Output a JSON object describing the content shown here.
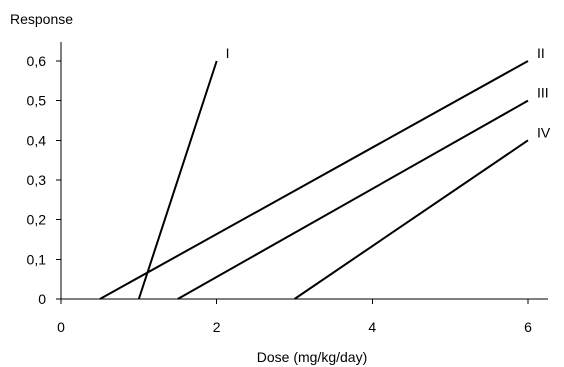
{
  "chart_data": {
    "type": "line",
    "title": "",
    "ylabel": "Response",
    "xlabel": "Dose (mg/kg/day)",
    "xlim": [
      0,
      6
    ],
    "ylim": [
      0,
      0.6
    ],
    "x_ticks": [
      0,
      2,
      4,
      6
    ],
    "x_tick_labels": [
      "0",
      "2",
      "4",
      "6"
    ],
    "y_ticks": [
      0,
      0.1,
      0.2,
      0.3,
      0.4,
      0.5,
      0.6
    ],
    "y_tick_labels": [
      "0",
      "0,1",
      "0,2",
      "0,3",
      "0,4",
      "0,5",
      "0,6"
    ],
    "grid": false,
    "line_color": "#000000",
    "series": [
      {
        "name": "I",
        "x": [
          1,
          2
        ],
        "y": [
          0,
          0.6
        ]
      },
      {
        "name": "II",
        "x": [
          0.5,
          6
        ],
        "y": [
          0,
          0.6
        ]
      },
      {
        "name": "III",
        "x": [
          1.5,
          6
        ],
        "y": [
          0,
          0.5
        ]
      },
      {
        "name": "IV",
        "x": [
          3,
          6
        ],
        "y": [
          0,
          0.4
        ]
      }
    ]
  }
}
